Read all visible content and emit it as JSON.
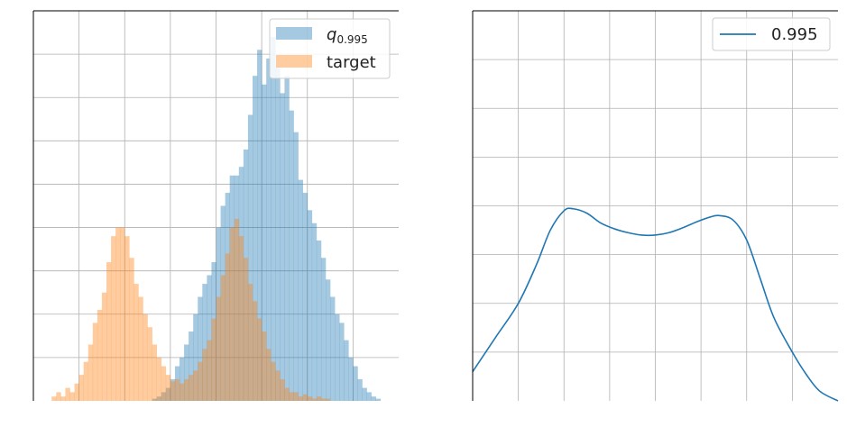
{
  "chart_data": [
    {
      "type": "histogram",
      "grid": true,
      "legend_placement": "top-right",
      "xlim": [
        -4.0,
        4.0
      ],
      "ylim": [
        0,
        0.9
      ],
      "xticks": [
        -3,
        -2,
        -1,
        0,
        1,
        2,
        3
      ],
      "yticks": [
        0.1,
        0.2,
        0.3,
        0.4,
        0.5,
        0.6,
        0.7,
        0.8
      ],
      "bin_width": 0.1,
      "legend": [
        {
          "id": "q",
          "label_base": "q",
          "label_sub": "0.995",
          "color": "#1f77b4"
        },
        {
          "id": "target",
          "label": "target",
          "color": "#ff7f0e"
        }
      ],
      "series": [
        {
          "id": "q",
          "color": "#1f77b4",
          "alpha": 0.4,
          "bin_start": -1.4,
          "values": [
            0.005,
            0.01,
            0.02,
            0.03,
            0.05,
            0.08,
            0.1,
            0.13,
            0.16,
            0.2,
            0.24,
            0.27,
            0.29,
            0.32,
            0.4,
            0.45,
            0.48,
            0.52,
            0.52,
            0.54,
            0.58,
            0.66,
            0.75,
            0.81,
            0.73,
            0.79,
            0.84,
            0.77,
            0.71,
            0.75,
            0.67,
            0.62,
            0.51,
            0.48,
            0.44,
            0.41,
            0.37,
            0.33,
            0.28,
            0.24,
            0.2,
            0.18,
            0.14,
            0.1,
            0.08,
            0.05,
            0.03,
            0.02,
            0.01,
            0.005
          ]
        },
        {
          "id": "target",
          "color": "#ff7f0e",
          "alpha": 0.4,
          "bin_start": -3.6,
          "values": [
            0.01,
            0.02,
            0.01,
            0.03,
            0.02,
            0.04,
            0.06,
            0.09,
            0.13,
            0.18,
            0.21,
            0.25,
            0.32,
            0.38,
            0.4,
            0.4,
            0.38,
            0.33,
            0.27,
            0.24,
            0.2,
            0.17,
            0.13,
            0.1,
            0.08,
            0.06,
            0.045,
            0.05,
            0.04,
            0.05,
            0.06,
            0.07,
            0.09,
            0.12,
            0.14,
            0.19,
            0.24,
            0.29,
            0.34,
            0.4,
            0.42,
            0.38,
            0.33,
            0.27,
            0.23,
            0.19,
            0.16,
            0.12,
            0.09,
            0.07,
            0.05,
            0.03,
            0.02,
            0.02,
            0.01,
            0.015,
            0.01,
            0.005,
            0.01,
            0.005,
            0.005
          ]
        }
      ]
    },
    {
      "type": "line",
      "grid": true,
      "legend_placement": "top-right",
      "xlim": [
        -4.0,
        4.0
      ],
      "ylim": [
        0,
        0.8
      ],
      "xticks": [
        -3,
        -2,
        -1,
        0,
        1,
        2,
        3
      ],
      "yticks": [
        0.1,
        0.2,
        0.3,
        0.4,
        0.5,
        0.6,
        0.7
      ],
      "series": [
        {
          "name": "0.995",
          "color": "#1f77b4",
          "x": [
            -4.0,
            -3.5,
            -3.0,
            -2.6,
            -2.3,
            -2.0,
            -1.8,
            -1.5,
            -1.2,
            -0.9,
            -0.6,
            -0.3,
            0.0,
            0.3,
            0.6,
            0.9,
            1.2,
            1.4,
            1.7,
            2.0,
            2.3,
            2.6,
            3.0,
            3.3,
            3.6,
            4.0
          ],
          "y": [
            0.06,
            0.13,
            0.2,
            0.28,
            0.35,
            0.39,
            0.394,
            0.385,
            0.365,
            0.353,
            0.345,
            0.34,
            0.34,
            0.345,
            0.355,
            0.367,
            0.377,
            0.38,
            0.371,
            0.33,
            0.25,
            0.17,
            0.1,
            0.055,
            0.02,
            0.0
          ]
        }
      ]
    }
  ]
}
